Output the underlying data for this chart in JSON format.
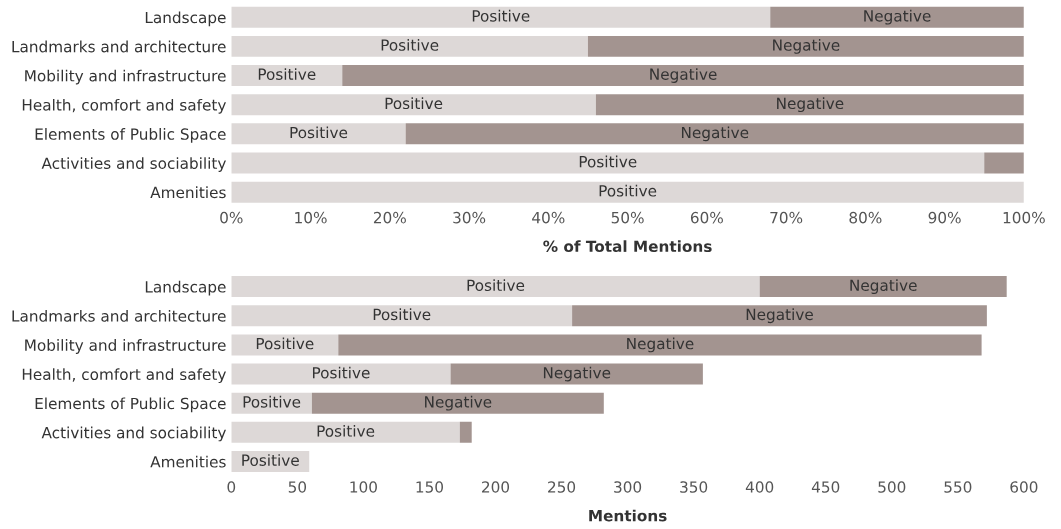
{
  "chart_data": [
    {
      "type": "bar",
      "orientation": "horizontal",
      "stacked": true,
      "xlabel": "% of Total Mentions",
      "categories": [
        "Landscape",
        "Landmarks and architecture",
        "Mobility and infrastructure",
        "Health, comfort and safety",
        "Elements of Public Space",
        "Activities and sociability",
        "Amenities"
      ],
      "series": [
        {
          "name": "Positive",
          "color": "#ddd8d7",
          "values": [
            68,
            45,
            14,
            46,
            22,
            95,
            100
          ]
        },
        {
          "name": "Negative",
          "color": "#a39490",
          "values": [
            32,
            55,
            86,
            54,
            78,
            5,
            0
          ]
        }
      ],
      "xlim": [
        0,
        100
      ],
      "xticks": [
        {
          "value": 0,
          "label": "0%"
        },
        {
          "value": 10,
          "label": "10%"
        },
        {
          "value": 20,
          "label": "20%"
        },
        {
          "value": 30,
          "label": "30%"
        },
        {
          "value": 40,
          "label": "40%"
        },
        {
          "value": 50,
          "label": "50%"
        },
        {
          "value": 60,
          "label": "60%"
        },
        {
          "value": 70,
          "label": "70%"
        },
        {
          "value": 80,
          "label": "80%"
        },
        {
          "value": 90,
          "label": "90%"
        },
        {
          "value": 100,
          "label": "100%"
        }
      ],
      "grid": false,
      "legend": false
    },
    {
      "type": "bar",
      "orientation": "horizontal",
      "stacked": true,
      "xlabel": "Mentions",
      "categories": [
        "Landscape",
        "Landmarks and architecture",
        "Mobility and infrastructure",
        "Health, comfort and safety",
        "Elements of Public Space",
        "Activities and sociability",
        "Amenities"
      ],
      "series": [
        {
          "name": "Positive",
          "color": "#ddd8d7",
          "values": [
            400,
            258,
            81,
            166,
            61,
            173,
            59
          ]
        },
        {
          "name": "Negative",
          "color": "#a39490",
          "values": [
            187,
            314,
            487,
            191,
            221,
            9,
            0
          ]
        }
      ],
      "xlim": [
        0,
        600
      ],
      "xticks": [
        0,
        50,
        100,
        150,
        200,
        250,
        300,
        350,
        400,
        450,
        500,
        550,
        600
      ],
      "grid": false,
      "legend": false
    }
  ]
}
